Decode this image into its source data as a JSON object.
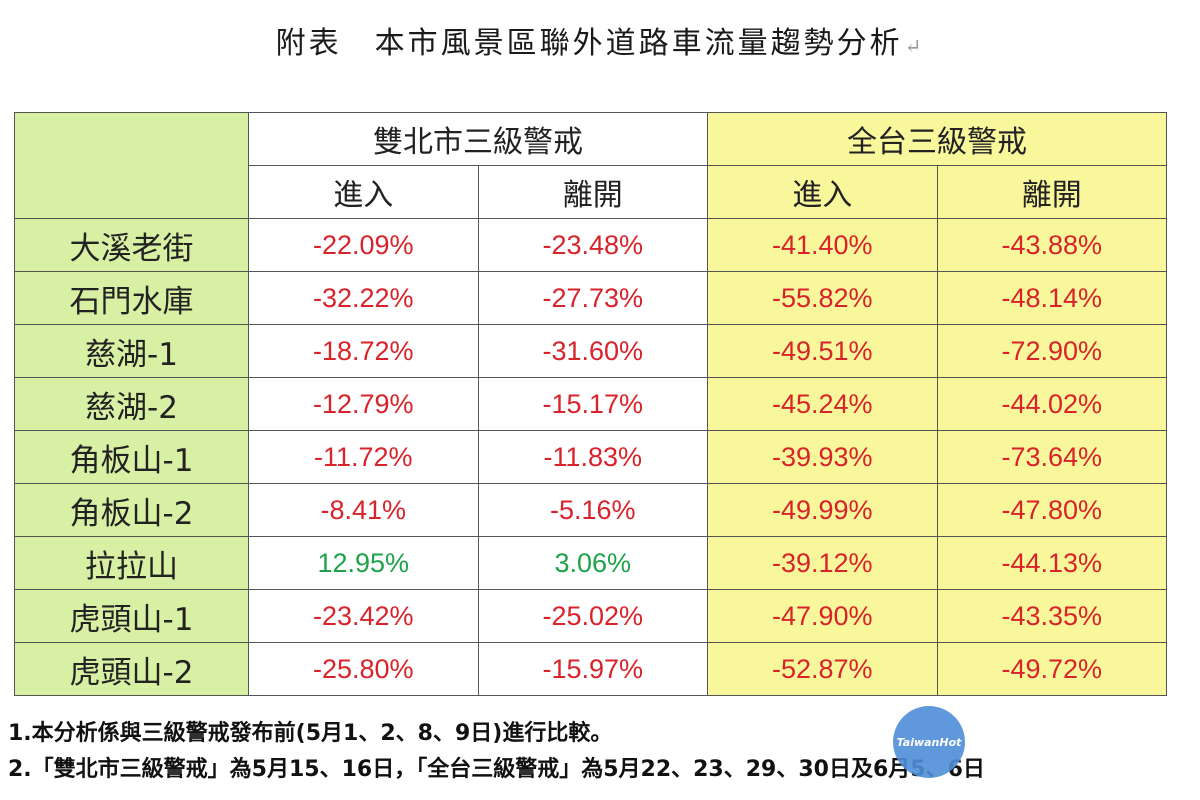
{
  "title": "附表　本市風景區聯外道路車流量趨勢分析",
  "return_mark": "↵",
  "table": {
    "group_headers": [
      "雙北市三級警戒",
      "全台三級警戒"
    ],
    "sub_headers": [
      "進入",
      "離開",
      "進入",
      "離開"
    ],
    "rows": [
      {
        "label": "大溪老街",
        "values": [
          "-22.09%",
          "-23.48%",
          "-41.40%",
          "-43.88%"
        ]
      },
      {
        "label": "石門水庫",
        "values": [
          "-32.22%",
          "-27.73%",
          "-55.82%",
          "-48.14%"
        ]
      },
      {
        "label": "慈湖-1",
        "values": [
          "-18.72%",
          "-31.60%",
          "-49.51%",
          "-72.90%"
        ]
      },
      {
        "label": "慈湖-2",
        "values": [
          "-12.79%",
          "-15.17%",
          "-45.24%",
          "-44.02%"
        ]
      },
      {
        "label": "角板山-1",
        "values": [
          "-11.72%",
          "-11.83%",
          "-39.93%",
          "-73.64%"
        ]
      },
      {
        "label": "角板山-2",
        "values": [
          "-8.41%",
          "-5.16%",
          "-49.99%",
          "-47.80%"
        ]
      },
      {
        "label": "拉拉山",
        "values": [
          "12.95%",
          "3.06%",
          "-39.12%",
          "-44.13%"
        ]
      },
      {
        "label": "虎頭山-1",
        "values": [
          "-23.42%",
          "-25.02%",
          "-47.90%",
          "-43.35%"
        ]
      },
      {
        "label": "虎頭山-2",
        "values": [
          "-25.80%",
          "-15.97%",
          "-52.87%",
          "-49.72%"
        ]
      }
    ]
  },
  "notes": [
    "1.本分析係與三級警戒發布前(5月1、2、8、9日)進行比較。",
    "2.「雙北市三級警戒」為5月15、16日，「全台三級警戒」為5月22、23、29、30日及6月5、6日"
  ],
  "watermark": "TaiwanHot",
  "colors": {
    "label_bg": "#d8f0a4",
    "taiwan_bg": "#f9f79c",
    "negative": "#d8232a",
    "positive": "#1ea24a"
  }
}
